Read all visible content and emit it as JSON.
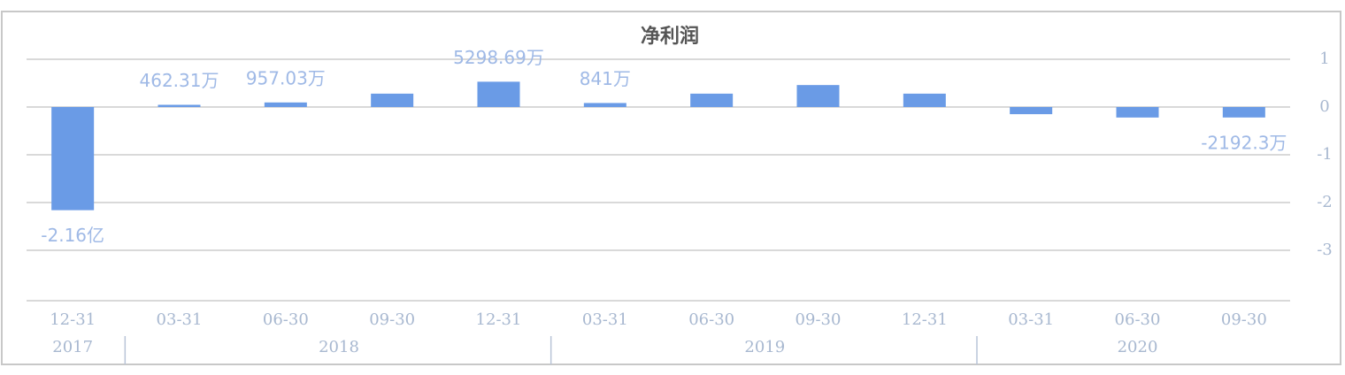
{
  "chart_data": {
    "type": "bar",
    "title": "净利润",
    "categories": [
      "12-31",
      "03-31",
      "06-30",
      "09-30",
      "12-31",
      "03-31",
      "06-30",
      "09-30",
      "12-31",
      "03-31",
      "06-30",
      "09-30"
    ],
    "years": [
      "2017",
      "2018",
      "2018",
      "2018",
      "2018",
      "2019",
      "2019",
      "2019",
      "2019",
      "2020",
      "2020",
      "2020"
    ],
    "values": [
      -2.16,
      0.046231,
      0.095703,
      0.28,
      0.529869,
      0.0841,
      0.28,
      0.46,
      0.28,
      -0.15,
      -0.22,
      -0.21923
    ],
    "value_labels": [
      "-2.16亿",
      "462.31万",
      "957.03万",
      null,
      "5298.69万",
      "841万",
      null,
      null,
      null,
      null,
      null,
      "-2192.3万"
    ],
    "color": "#6a9be6",
    "ylim": [
      -4,
      2
    ],
    "yticks": [
      1,
      0,
      -1,
      -2,
      -3
    ],
    "grid": true
  }
}
